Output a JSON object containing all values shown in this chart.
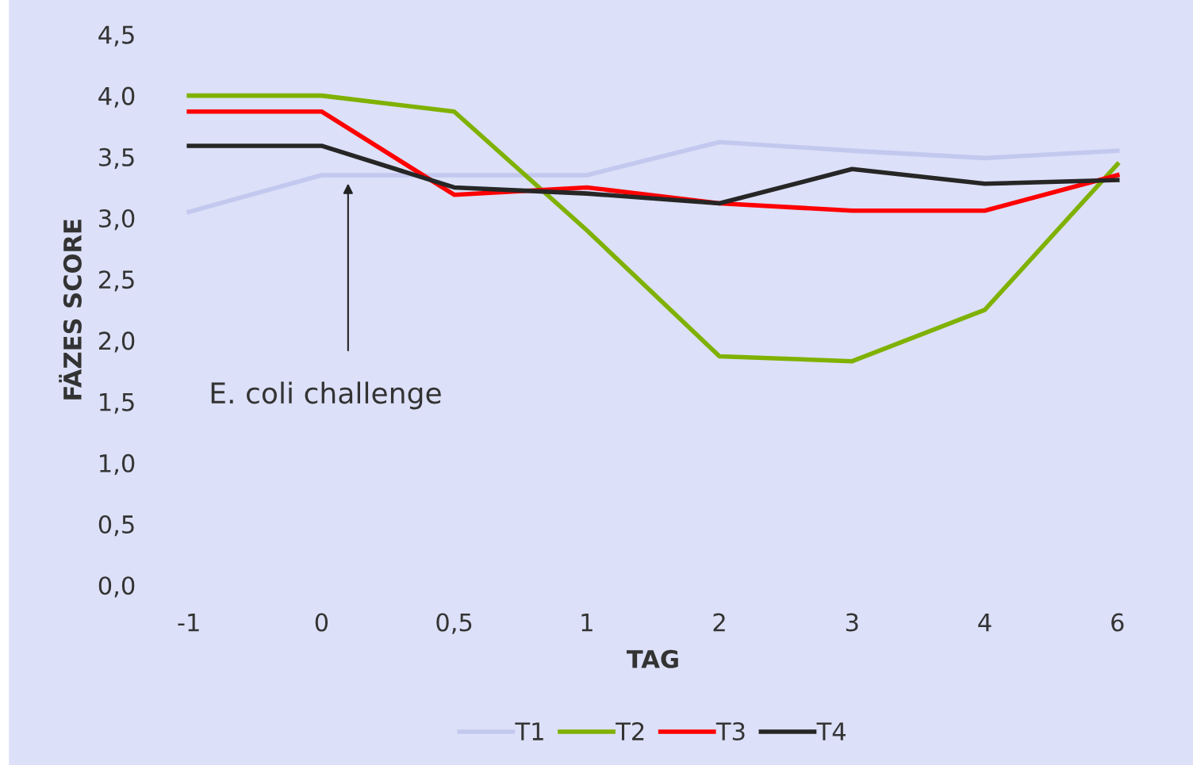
{
  "chart_data": {
    "type": "line",
    "xlabel": "TAG",
    "ylabel": "FÄZES SCORE",
    "categories": [
      "-1",
      "0",
      "0,5",
      "1",
      "2",
      "3",
      "4",
      "6"
    ],
    "series": [
      {
        "name": "T1",
        "color": "#c3c8ef",
        "values": [
          3.05,
          3.35,
          3.35,
          3.35,
          3.62,
          3.55,
          3.49,
          3.55
        ]
      },
      {
        "name": "T2",
        "color": "#7fb100",
        "values": [
          4.0,
          4.0,
          3.87,
          2.9,
          1.87,
          1.83,
          2.25,
          3.44
        ]
      },
      {
        "name": "T3",
        "color": "#ff0000",
        "values": [
          3.87,
          3.87,
          3.19,
          3.25,
          3.12,
          3.06,
          3.06,
          3.35
        ]
      },
      {
        "name": "T4",
        "color": "#262626",
        "values": [
          3.59,
          3.59,
          3.25,
          3.2,
          3.12,
          3.4,
          3.28,
          3.31
        ]
      }
    ],
    "ylim": [
      0,
      4.5
    ],
    "yticks": [
      {
        "value": 0,
        "label": "0,0"
      },
      {
        "value": 0.5,
        "label": "0,5"
      },
      {
        "value": 1,
        "label": "1,0"
      },
      {
        "value": 1.5,
        "label": "1,5"
      },
      {
        "value": 2,
        "label": "2,0"
      },
      {
        "value": 2.5,
        "label": "2,5"
      },
      {
        "value": 3,
        "label": "3,0"
      },
      {
        "value": 3.5,
        "label": "3,5"
      },
      {
        "value": 4,
        "label": "4,0"
      },
      {
        "value": 4.5,
        "label": "4,5"
      }
    ],
    "annotations": [
      "E. coli challenge"
    ],
    "legend": "bottom",
    "grid": false,
    "line_style": "solid",
    "marker": "none"
  }
}
